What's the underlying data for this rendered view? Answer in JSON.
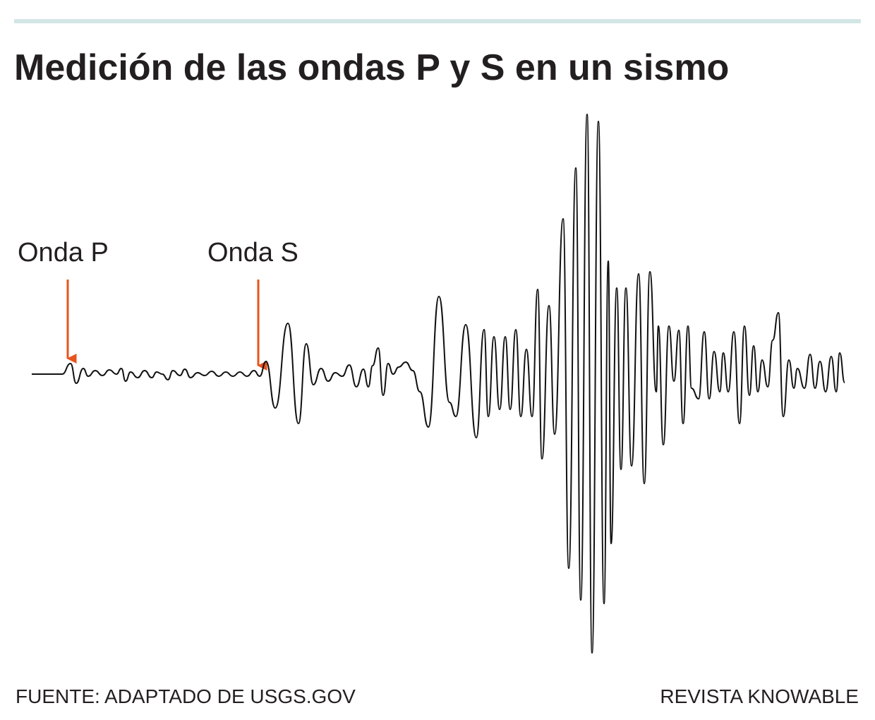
{
  "header": {
    "title": "Medición de las ondas P y S en un sismo"
  },
  "labels": [
    "Onda P",
    "Onda S"
  ],
  "footer": {
    "source": "FUENTE: ADAPTADO DE USGS.GOV",
    "credit": "REVISTA KNOWABLE"
  }
}
